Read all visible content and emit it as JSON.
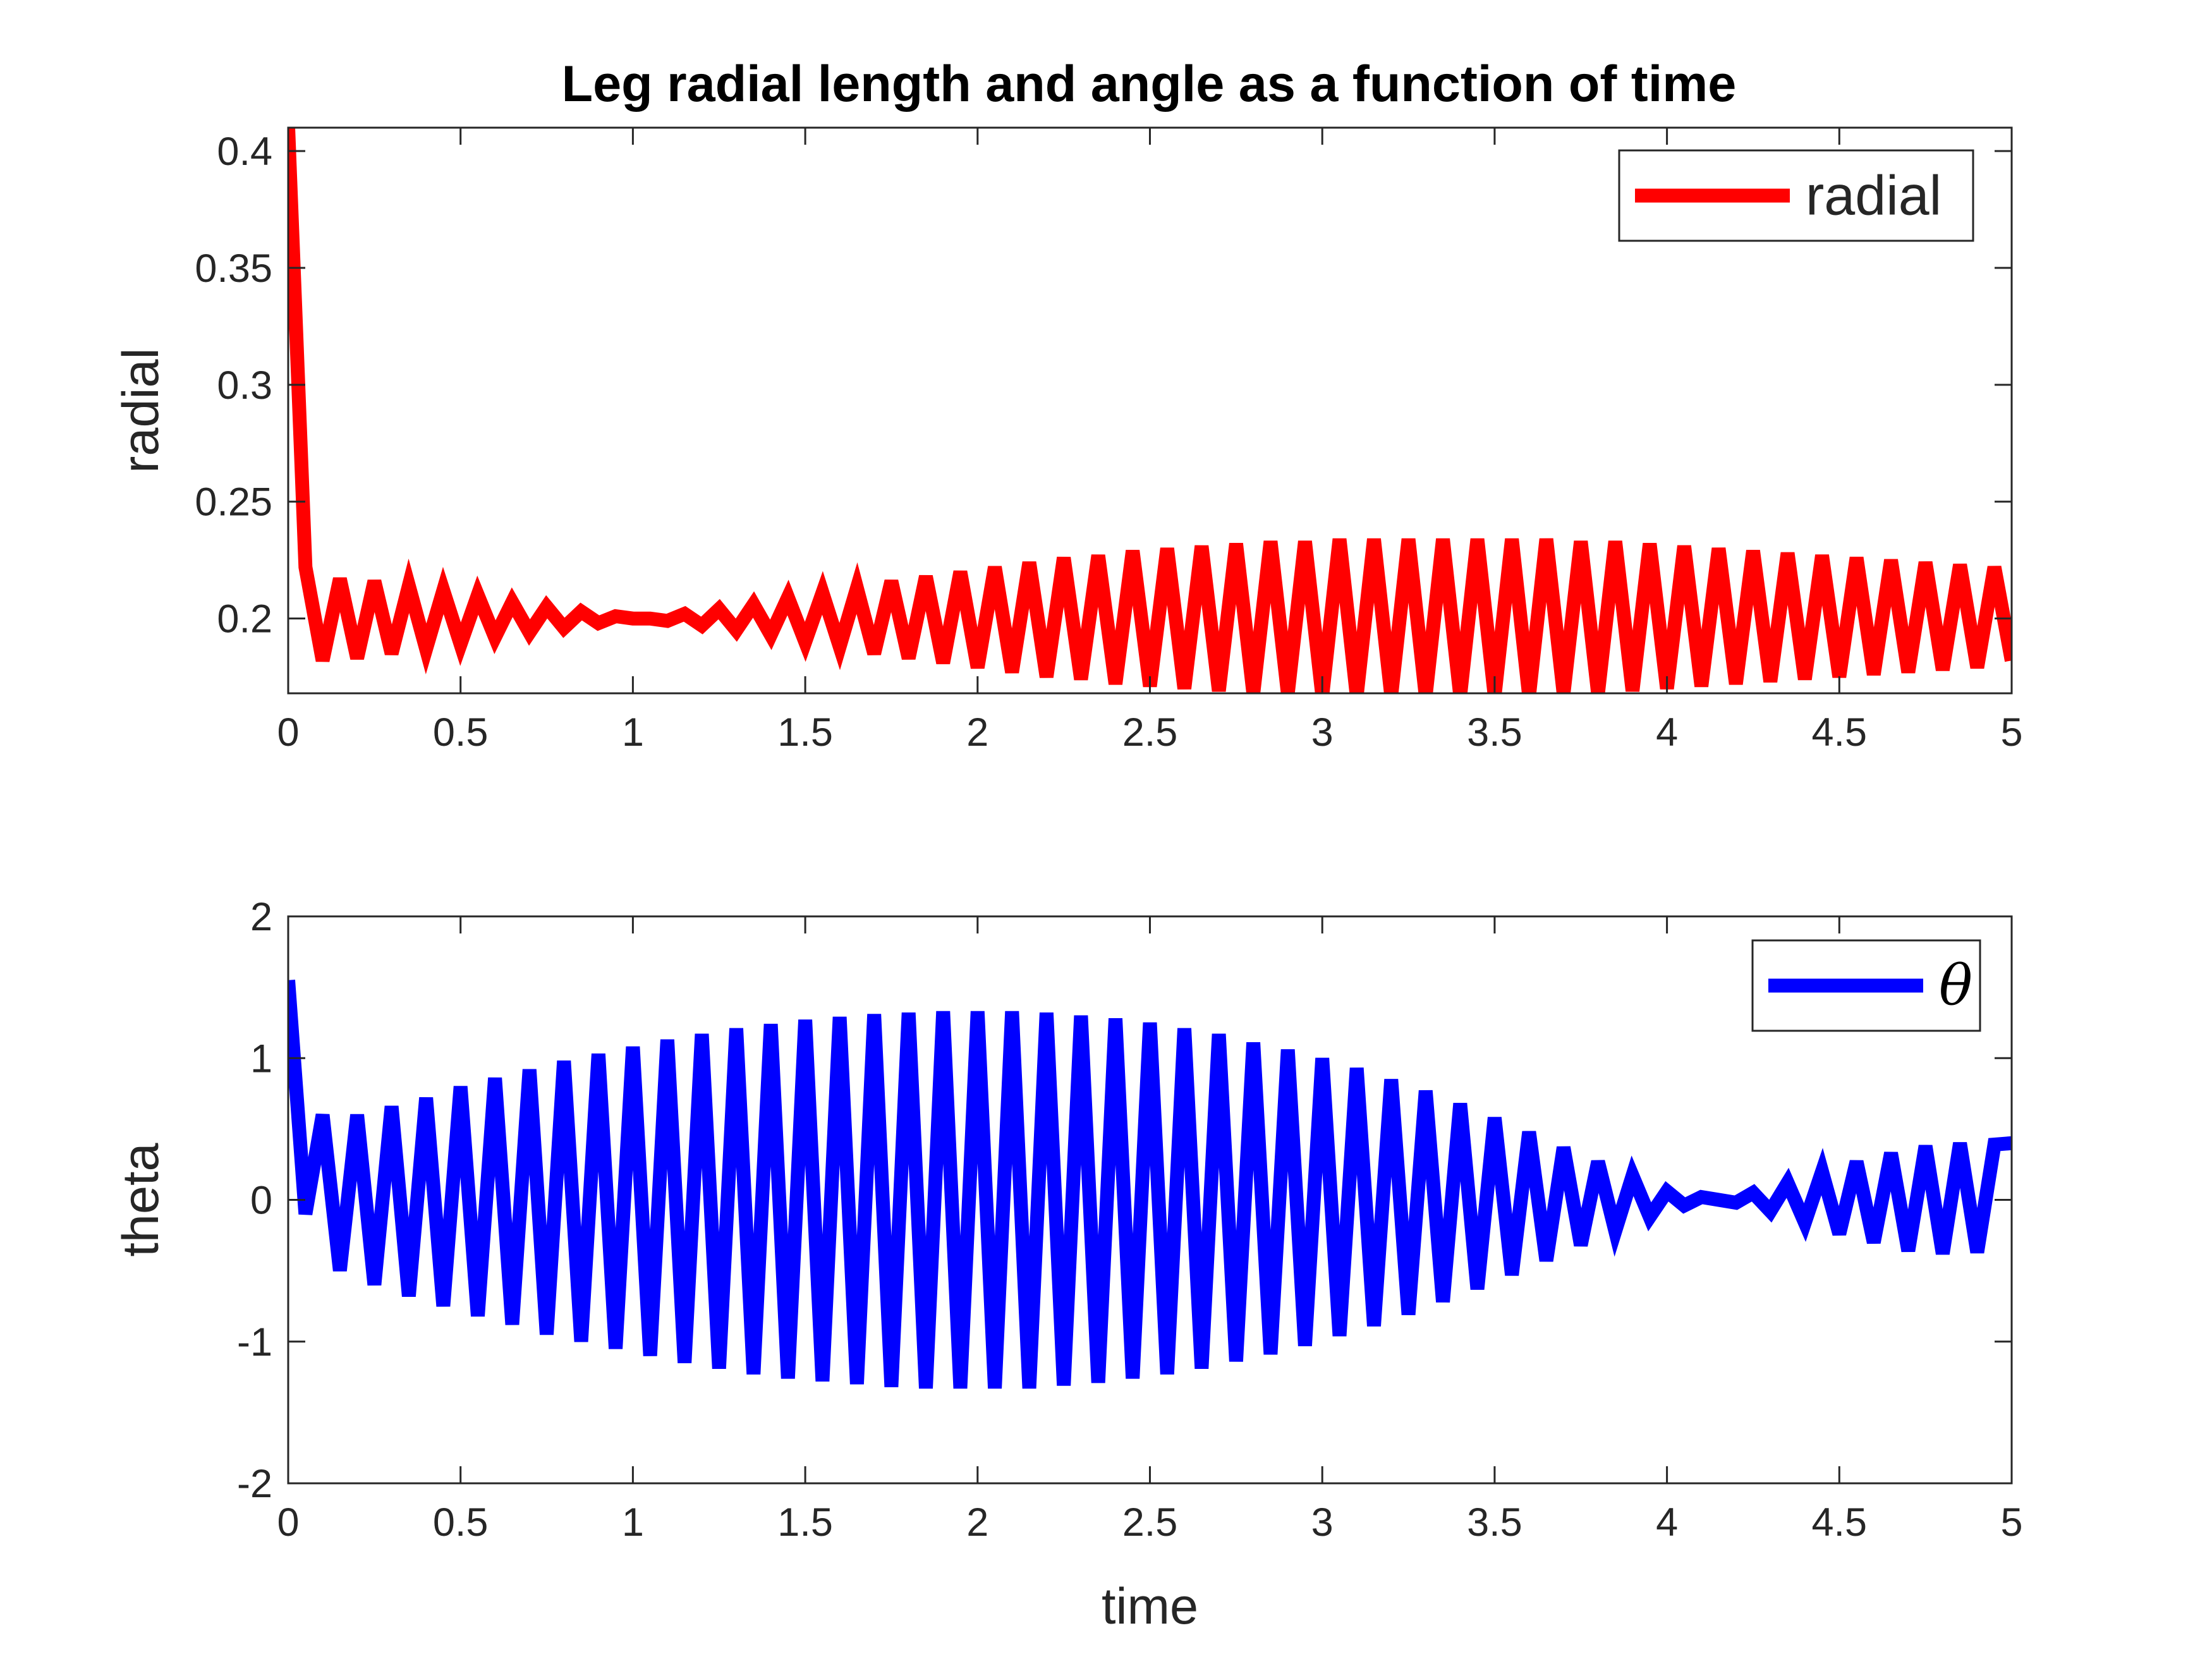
{
  "chart_data": [
    {
      "type": "line",
      "title": "Leg radial length and angle as a function of time",
      "xlabel": "",
      "ylabel": "radial",
      "xlim": [
        0,
        5
      ],
      "ylim": [
        0.168,
        0.41
      ],
      "xticks": [
        "0",
        "0.5",
        "1",
        "1.5",
        "2",
        "2.5",
        "3",
        "3.5",
        "4",
        "4.5",
        "5"
      ],
      "yticks": [
        "0.2",
        "0.25",
        "0.3",
        "0.35",
        "0.4"
      ],
      "grid": false,
      "legend_position": "top-right",
      "series": [
        {
          "name": "radial",
          "color": "#ff0000",
          "x": [
            0,
            0.05,
            0.1,
            0.15,
            0.2,
            0.25,
            0.3,
            0.35,
            0.4,
            0.45,
            0.5,
            0.55,
            0.6,
            0.65,
            0.7,
            0.75,
            0.8,
            0.85,
            0.9,
            0.95,
            1,
            1.05,
            1.1,
            1.15,
            1.2,
            1.25,
            1.3,
            1.35,
            1.4,
            1.45,
            1.5,
            1.55,
            1.6,
            1.65,
            1.7,
            1.75,
            1.8,
            1.85,
            1.9,
            1.95,
            2,
            2.05,
            2.1,
            2.15,
            2.2,
            2.25,
            2.3,
            2.35,
            2.4,
            2.45,
            2.5,
            2.55,
            2.6,
            2.65,
            2.7,
            2.75,
            2.8,
            2.85,
            2.9,
            2.95,
            3,
            3.05,
            3.1,
            3.15,
            3.2,
            3.25,
            3.3,
            3.35,
            3.4,
            3.45,
            3.5,
            3.55,
            3.6,
            3.65,
            3.7,
            3.75,
            3.8,
            3.85,
            3.9,
            3.95,
            4,
            4.05,
            4.1,
            4.15,
            4.2,
            4.25,
            4.3,
            4.35,
            4.4,
            4.45,
            4.5,
            4.55,
            4.6,
            4.65,
            4.7,
            4.75,
            4.8,
            4.85,
            4.9,
            4.95,
            5
          ],
          "y": [
            0.41,
            0.222,
            0.182,
            0.217,
            0.183,
            0.216,
            0.185,
            0.214,
            0.187,
            0.212,
            0.189,
            0.21,
            0.192,
            0.207,
            0.194,
            0.205,
            0.196,
            0.203,
            0.198,
            0.201,
            0.2,
            0.2,
            0.199,
            0.202,
            0.197,
            0.204,
            0.195,
            0.206,
            0.193,
            0.209,
            0.19,
            0.211,
            0.188,
            0.213,
            0.185,
            0.216,
            0.183,
            0.218,
            0.181,
            0.22,
            0.179,
            0.222,
            0.177,
            0.224,
            0.175,
            0.226,
            0.174,
            0.227,
            0.172,
            0.229,
            0.171,
            0.23,
            0.17,
            0.231,
            0.169,
            0.232,
            0.168,
            0.233,
            0.168,
            0.233,
            0.167,
            0.234,
            0.167,
            0.234,
            0.167,
            0.234,
            0.167,
            0.234,
            0.167,
            0.234,
            0.167,
            0.234,
            0.167,
            0.234,
            0.168,
            0.233,
            0.168,
            0.233,
            0.169,
            0.232,
            0.17,
            0.231,
            0.171,
            0.23,
            0.172,
            0.229,
            0.173,
            0.228,
            0.174,
            0.227,
            0.175,
            0.226,
            0.176,
            0.225,
            0.177,
            0.224,
            0.178,
            0.223,
            0.179,
            0.222,
            0.182
          ]
        }
      ]
    },
    {
      "type": "line",
      "title": "",
      "xlabel": "time",
      "ylabel": "theta",
      "xlim": [
        0,
        5
      ],
      "ylim": [
        -2,
        2
      ],
      "xticks": [
        "0",
        "0.5",
        "1",
        "1.5",
        "2",
        "2.5",
        "3",
        "3.5",
        "4",
        "4.5",
        "5"
      ],
      "yticks": [
        "-2",
        "-1",
        "0",
        "1",
        "2"
      ],
      "grid": false,
      "legend_position": "top-right",
      "series": [
        {
          "name": "θ",
          "color": "#0000ff",
          "x": [
            0,
            0.05,
            0.1,
            0.15,
            0.2,
            0.25,
            0.3,
            0.35,
            0.4,
            0.45,
            0.5,
            0.55,
            0.6,
            0.65,
            0.7,
            0.75,
            0.8,
            0.85,
            0.9,
            0.95,
            1,
            1.05,
            1.1,
            1.15,
            1.2,
            1.25,
            1.3,
            1.35,
            1.4,
            1.45,
            1.5,
            1.55,
            1.6,
            1.65,
            1.7,
            1.75,
            1.8,
            1.85,
            1.9,
            1.95,
            2,
            2.05,
            2.1,
            2.15,
            2.2,
            2.25,
            2.3,
            2.35,
            2.4,
            2.45,
            2.5,
            2.55,
            2.6,
            2.65,
            2.7,
            2.75,
            2.8,
            2.85,
            2.9,
            2.95,
            3,
            3.05,
            3.1,
            3.15,
            3.2,
            3.25,
            3.3,
            3.35,
            3.4,
            3.45,
            3.5,
            3.55,
            3.6,
            3.65,
            3.7,
            3.75,
            3.8,
            3.85,
            3.9,
            3.95,
            4,
            4.05,
            4.1,
            4.15,
            4.2,
            4.25,
            4.3,
            4.35,
            4.4,
            4.45,
            4.5,
            4.55,
            4.6,
            4.65,
            4.7,
            4.75,
            4.8,
            4.85,
            4.9,
            4.95,
            5
          ],
          "y": [
            1.55,
            -0.1,
            0.6,
            -0.5,
            0.6,
            -0.6,
            0.66,
            -0.68,
            0.72,
            -0.75,
            0.8,
            -0.82,
            0.86,
            -0.88,
            0.92,
            -0.95,
            0.98,
            -1.0,
            1.03,
            -1.05,
            1.08,
            -1.1,
            1.13,
            -1.15,
            1.17,
            -1.19,
            1.21,
            -1.23,
            1.24,
            -1.26,
            1.27,
            -1.28,
            1.29,
            -1.3,
            1.31,
            -1.32,
            1.32,
            -1.33,
            1.33,
            -1.33,
            1.33,
            -1.33,
            1.33,
            -1.33,
            1.32,
            -1.31,
            1.3,
            -1.29,
            1.28,
            -1.26,
            1.25,
            -1.23,
            1.21,
            -1.19,
            1.17,
            -1.14,
            1.11,
            -1.09,
            1.06,
            -1.03,
            1.0,
            -0.96,
            0.93,
            -0.89,
            0.85,
            -0.81,
            0.77,
            -0.72,
            0.68,
            -0.63,
            0.58,
            -0.53,
            0.48,
            -0.43,
            0.37,
            -0.32,
            0.27,
            -0.22,
            0.17,
            -0.12,
            0.06,
            -0.04,
            0.02,
            0.0,
            -0.02,
            0.05,
            -0.08,
            0.12,
            -0.16,
            0.2,
            -0.24,
            0.27,
            -0.3,
            0.33,
            -0.36,
            0.38,
            -0.38,
            0.4,
            -0.37,
            0.39,
            0.4
          ]
        }
      ]
    }
  ]
}
